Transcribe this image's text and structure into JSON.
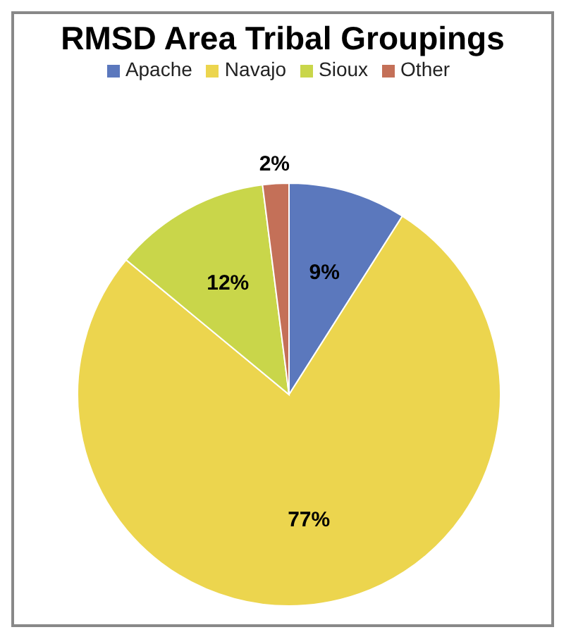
{
  "chart_data": {
    "type": "pie",
    "title": "RMSD Area Tribal Groupings",
    "categories": [
      "Apache",
      "Navajo",
      "Sioux",
      "Other"
    ],
    "values": [
      9,
      77,
      12,
      2
    ],
    "value_labels": [
      "9%",
      "77%",
      "12%",
      "2%"
    ],
    "colors": [
      "#5b78bd",
      "#ecd54e",
      "#c9d64a",
      "#c47058"
    ],
    "legend": "top"
  }
}
